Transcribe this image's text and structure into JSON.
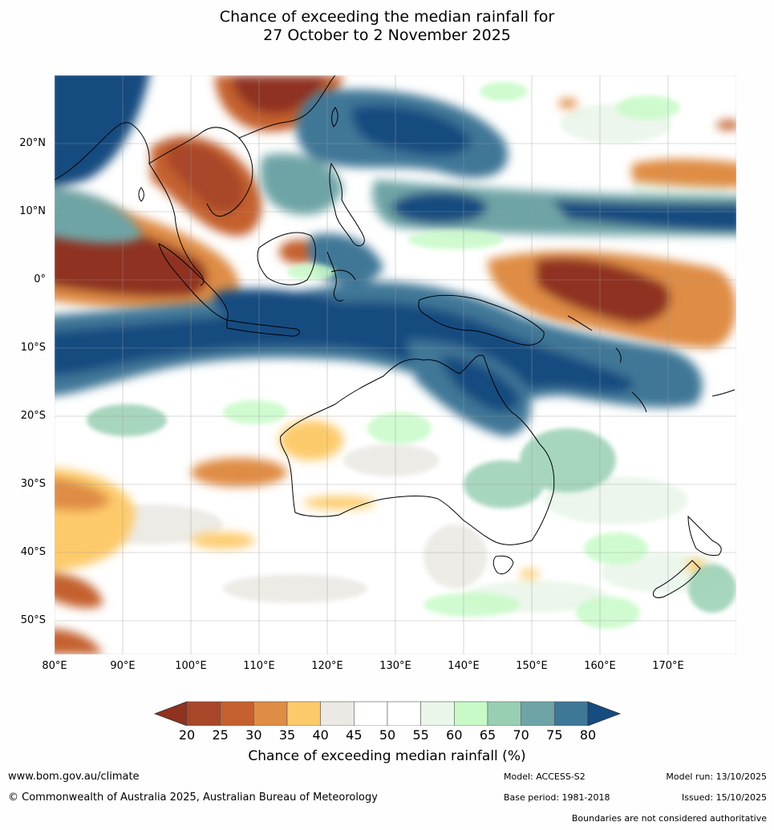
{
  "title_line1": "Chance of exceeding the median rainfall for",
  "title_line2": "27 October to 2 November 2025",
  "lat_labels": [
    "20°N",
    "10°N",
    "0°",
    "10°S",
    "20°S",
    "30°S",
    "40°S",
    "50°S"
  ],
  "lon_labels": [
    "80°E",
    "90°E",
    "100°E",
    "110°E",
    "120°E",
    "130°E",
    "140°E",
    "150°E",
    "160°E",
    "170°E"
  ],
  "colorbar": {
    "ticks": [
      "20",
      "25",
      "30",
      "35",
      "40",
      "45",
      "50",
      "55",
      "60",
      "65",
      "70",
      "75",
      "80"
    ],
    "colors": [
      "#8f3220",
      "#a8472a",
      "#c4602f",
      "#df8c45",
      "#fdca6b",
      "#ece9e4",
      "#ffffff",
      "#ffffff",
      "#eaf6ea",
      "#c8fac8",
      "#98cfb3",
      "#6ea4a6",
      "#3f7797",
      "#164c80"
    ],
    "label": "Chance of exceeding median rainfall (%)"
  },
  "footer": {
    "url": "www.bom.gov.au/climate",
    "copyright": "© Commonwealth of Australia 2025, Australian Bureau of Meteorology",
    "model": "Model: ACCESS-S2",
    "base_period": "Base period: 1981-2018",
    "model_run": "Model run: 13/10/2025",
    "issued": "Issued: 15/10/2025",
    "disclaimer": "Boundaries are not considered authoritative"
  }
}
